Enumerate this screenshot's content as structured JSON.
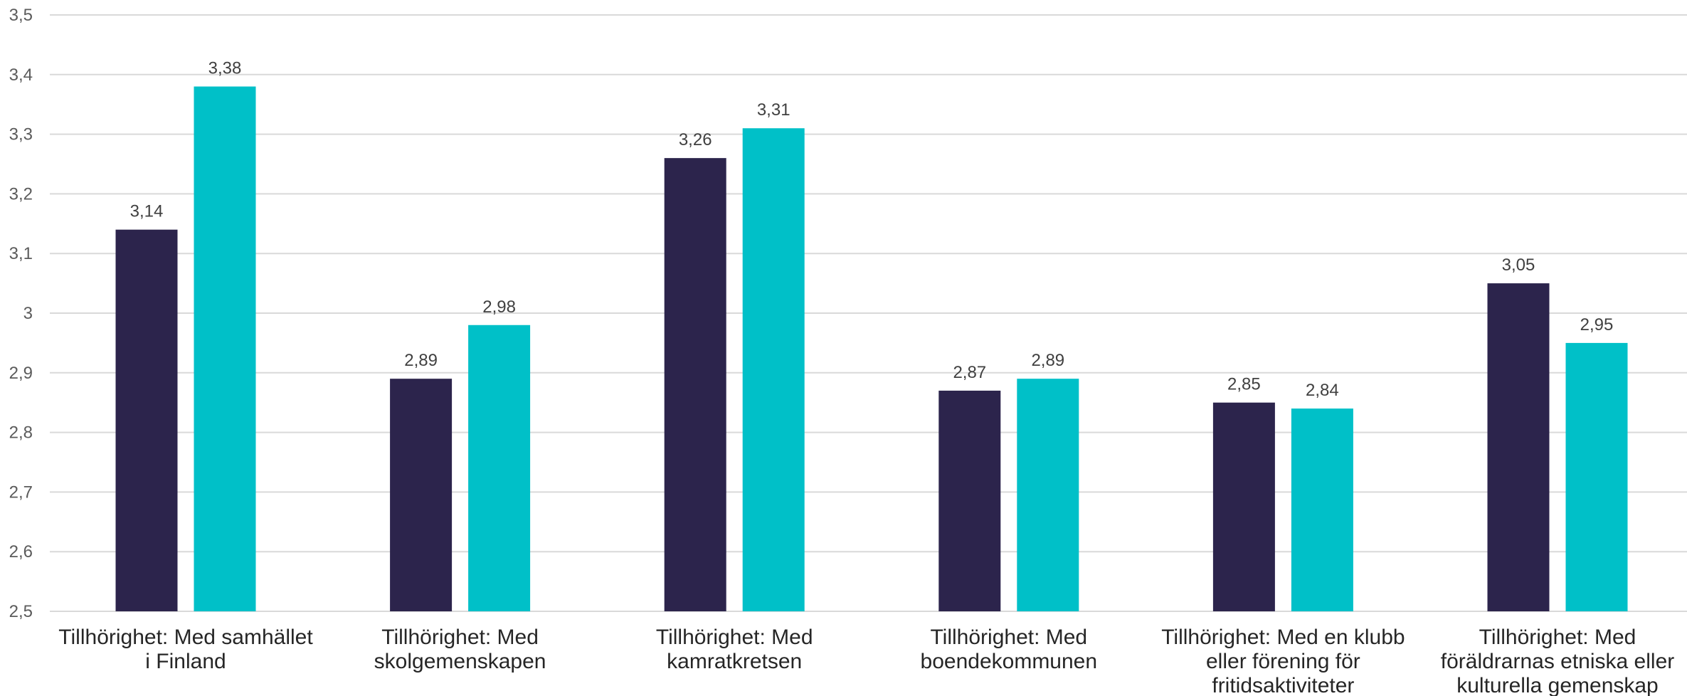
{
  "chart_data": {
    "type": "bar",
    "title": "",
    "xlabel": "",
    "ylabel": "",
    "ylim": [
      2.5,
      3.5
    ],
    "y_ticks": [
      "2,5",
      "2,6",
      "2,7",
      "2,8",
      "2,9",
      "3",
      "3,1",
      "3,2",
      "3,3",
      "3,4",
      "3,5"
    ],
    "y_tick_values": [
      2.5,
      2.6,
      2.7,
      2.8,
      2.9,
      3.0,
      3.1,
      3.2,
      3.3,
      3.4,
      3.5
    ],
    "grid": true,
    "legend": "none",
    "categories": [
      [
        "Tillhörighet: Med samhället",
        "i Finland"
      ],
      [
        "Tillhörighet: Med",
        "skolgemenskapen"
      ],
      [
        "Tillhörighet: Med",
        "kamratkretsen"
      ],
      [
        "Tillhörighet: Med",
        "boendekommunen"
      ],
      [
        "Tillhörighet: Med en klubb",
        "eller förening för",
        "fritidsaktiviteter"
      ],
      [
        "Tillhörighet: Med",
        "föräldrarnas etniska eller",
        "kulturella gemenskap"
      ]
    ],
    "series": [
      {
        "color": "#2c244c",
        "values": [
          3.14,
          2.89,
          3.26,
          2.87,
          2.85,
          3.05
        ],
        "labels": [
          "3,14",
          "2,89",
          "3,26",
          "2,87",
          "2,85",
          "3,05"
        ]
      },
      {
        "color": "#00c0c8",
        "values": [
          3.38,
          2.98,
          3.31,
          2.89,
          2.84,
          2.95
        ],
        "labels": [
          "3,38",
          "2,98",
          "3,31",
          "2,89",
          "2,84",
          "2,95"
        ]
      }
    ]
  }
}
